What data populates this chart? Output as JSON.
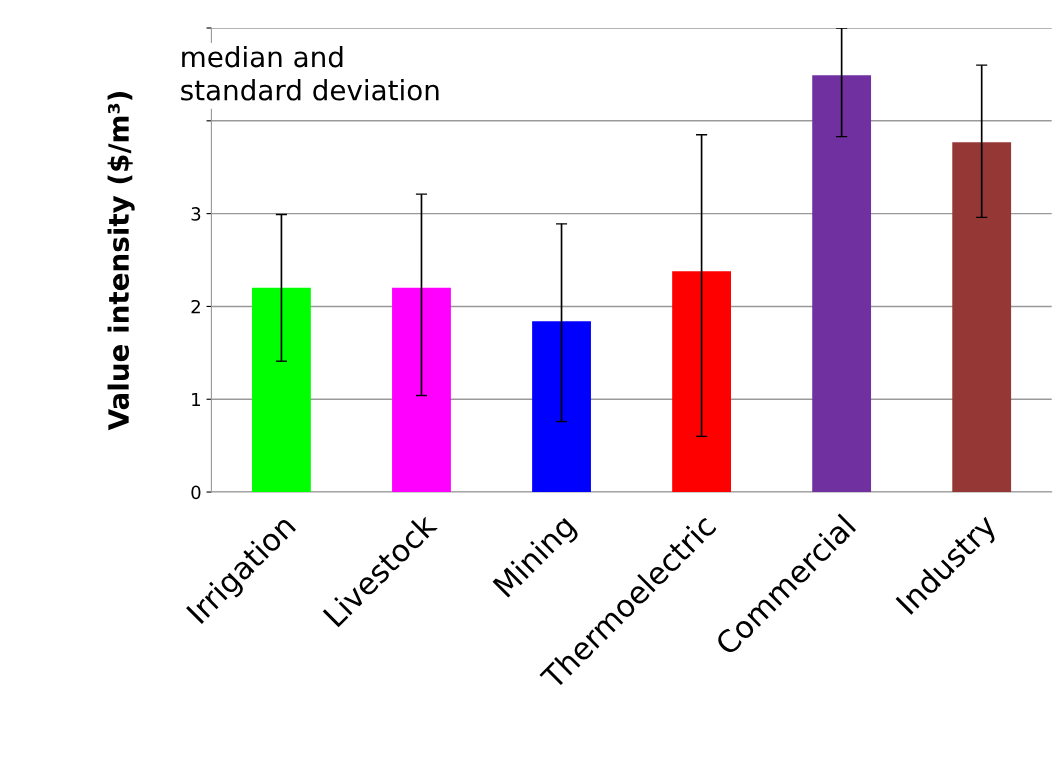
{
  "chart_data": {
    "type": "bar",
    "ylabel": "Value intensity ($/m³)",
    "categories": [
      "Irrigation",
      "Livestock",
      "Mining",
      "Thermoelectric",
      "Commercial",
      "Industry"
    ],
    "values": [
      2.2,
      2.2,
      1.84,
      2.38,
      4.49,
      3.77
    ],
    "colors": [
      "#00ff00",
      "#ff00ff",
      "#0000ff",
      "#ff0000",
      "#7030a0",
      "#953735"
    ],
    "errors": [
      [
        1.41,
        2.99
      ],
      [
        1.04,
        3.21
      ],
      [
        0.76,
        2.89
      ],
      [
        0.6,
        3.85
      ],
      [
        3.83,
        5.0
      ],
      [
        2.96,
        4.6
      ]
    ],
    "ylim": [
      0,
      5
    ],
    "yticks": [
      0,
      1,
      2,
      3,
      {
        "value": 4,
        "label": null
      },
      {
        "value": 5,
        "label": null
      }
    ],
    "grid": "y",
    "legend": false,
    "annotations": [
      "median and\nstandard deviation"
    ]
  }
}
